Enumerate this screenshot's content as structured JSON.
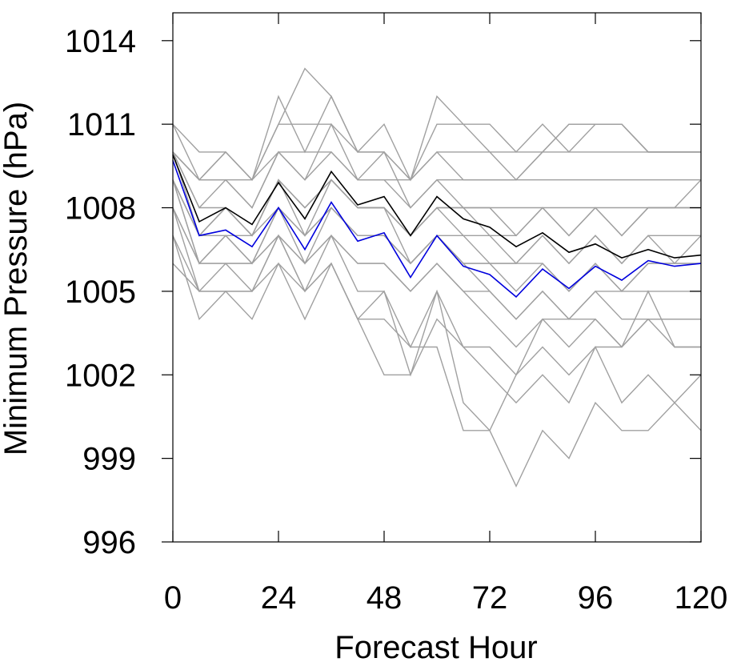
{
  "chart_data": {
    "type": "line",
    "title": "",
    "xlabel": "Forecast Hour",
    "ylabel": "Minimum Pressure (hPa)",
    "xlim": [
      0,
      120
    ],
    "ylim": [
      996,
      1015
    ],
    "xticks": [
      0,
      24,
      48,
      72,
      96,
      120
    ],
    "xtick_labels": [
      "0",
      "24",
      "48",
      "72",
      "96",
      "120"
    ],
    "yticks": [
      996,
      999,
      1002,
      1005,
      1008,
      1011,
      1014
    ],
    "ytick_labels": [
      "996",
      "999",
      "1002",
      "1005",
      "1008",
      "1011",
      "1014"
    ],
    "grid": false,
    "legend": "none",
    "x": [
      0,
      6,
      12,
      18,
      24,
      30,
      36,
      42,
      48,
      54,
      60,
      66,
      72,
      78,
      84,
      90,
      96,
      102,
      108,
      114,
      120
    ],
    "series": [
      {
        "color": "#000000",
        "values": [
          1009.9,
          1007.5,
          1008.0,
          1007.4,
          1008.9,
          1007.6,
          1009.3,
          1008.1,
          1008.4,
          1007.0,
          1008.4,
          1007.6,
          1007.3,
          1006.6,
          1007.1,
          1006.4,
          1006.7,
          1006.2,
          1006.5,
          1006.2,
          1006.3
        ]
      },
      {
        "color": "#0000dd",
        "values": [
          1009.7,
          1007.0,
          1007.2,
          1006.6,
          1008.0,
          1006.5,
          1008.2,
          1006.8,
          1007.1,
          1005.5,
          1007.0,
          1005.9,
          1005.6,
          1004.8,
          1005.8,
          1005.1,
          1005.9,
          1005.4,
          1006.1,
          1005.9,
          1006.0
        ]
      },
      {
        "color": "#a0a0a0",
        "values": [
          1010,
          1009,
          1009,
          1009,
          1010,
          1010,
          1010,
          1009,
          1009,
          1009,
          1010,
          1010,
          1010,
          1010,
          1010,
          1010,
          1010,
          1010,
          1010,
          1010,
          1010
        ]
      },
      {
        "color": "#a0a0a0",
        "values": [
          1011,
          1010,
          1010,
          1009,
          1011,
          1011,
          1011,
          1010,
          1010,
          1009,
          1011,
          1011,
          1011,
          1010,
          1011,
          1010,
          1011,
          1011,
          1010,
          1010,
          1010
        ]
      },
      {
        "color": "#a0a0a0",
        "values": [
          1010,
          1009,
          1009,
          1008,
          1010,
          1009,
          1010,
          1009,
          1009,
          1008,
          1009,
          1009,
          1009,
          1009,
          1009,
          1009,
          1009,
          1009,
          1009,
          1009,
          1009
        ]
      },
      {
        "color": "#a0a0a0",
        "values": [
          1009,
          1007,
          1008,
          1007,
          1009,
          1008,
          1009,
          1008,
          1008,
          1007,
          1008,
          1008,
          1008,
          1008,
          1008,
          1008,
          1008,
          1008,
          1008,
          1008,
          1008
        ]
      },
      {
        "color": "#a0a0a0",
        "values": [
          1010,
          1008,
          1009,
          1008,
          1010,
          1009,
          1011,
          1009,
          1010,
          1008,
          1009,
          1008,
          1008,
          1007,
          1008,
          1007,
          1008,
          1007,
          1008,
          1008,
          1009
        ]
      },
      {
        "color": "#a0a0a0",
        "values": [
          1009,
          1006,
          1007,
          1006,
          1008,
          1006,
          1008,
          1007,
          1007,
          1006,
          1007,
          1006,
          1006,
          1005,
          1006,
          1005,
          1006,
          1005,
          1006,
          1006,
          1007
        ]
      },
      {
        "color": "#a0a0a0",
        "values": [
          1008,
          1006,
          1006,
          1006,
          1007,
          1006,
          1007,
          1006,
          1006,
          1005,
          1006,
          1005,
          1005,
          1004,
          1005,
          1004,
          1005,
          1005,
          1005,
          1005,
          1005
        ]
      },
      {
        "color": "#a0a0a0",
        "values": [
          1009,
          1007,
          1007,
          1007,
          1008,
          1007,
          1008,
          1007,
          1007,
          1006,
          1007,
          1006,
          1006,
          1006,
          1006,
          1005,
          1006,
          1005,
          1006,
          1006,
          1006
        ]
      },
      {
        "color": "#a0a0a0",
        "values": [
          1010,
          1008,
          1008,
          1007,
          1009,
          1008,
          1009,
          1008,
          1008,
          1007,
          1008,
          1007,
          1007,
          1006,
          1007,
          1006,
          1007,
          1006,
          1007,
          1006,
          1006
        ]
      },
      {
        "color": "#a0a0a0",
        "values": [
          1011,
          1009,
          1010,
          1009,
          1012,
          1010,
          1012,
          1010,
          1011,
          1009,
          1012,
          1011,
          1010,
          1009,
          1010,
          1011,
          1011,
          1011,
          1010,
          1010,
          1010
        ]
      },
      {
        "color": "#a0a0a0",
        "values": [
          1010,
          1009,
          1010,
          1009,
          1011,
          1013,
          1012,
          1010,
          1010,
          1009,
          1010,
          1009,
          1009,
          1009,
          1010,
          1011,
          1011,
          1011,
          1010,
          1010,
          1010
        ]
      },
      {
        "color": "#a0a0a0",
        "values": [
          1009,
          1007,
          1008,
          1007,
          1009,
          1008,
          1009,
          1008,
          1008,
          1006,
          1007,
          1006,
          1005,
          1004,
          1005,
          1004,
          1005,
          1004,
          1004,
          1004,
          1004
        ]
      },
      {
        "color": "#a0a0a0",
        "values": [
          1008,
          1006,
          1006,
          1006,
          1007,
          1006,
          1007,
          1006,
          1006,
          1005,
          1006,
          1005,
          1004,
          1003,
          1004,
          1003,
          1004,
          1003,
          1004,
          1003,
          1003
        ]
      },
      {
        "color": "#a0a0a0",
        "values": [
          1008,
          1005,
          1005,
          1005,
          1007,
          1005,
          1006,
          1004,
          1005,
          1002,
          1005,
          1003,
          1003,
          1002,
          1004,
          1004,
          1004,
          1003,
          1004,
          1004,
          1004
        ]
      },
      {
        "color": "#a0a0a0",
        "values": [
          1007,
          1004,
          1005,
          1004,
          1006,
          1004,
          1006,
          1004,
          1002,
          1002,
          1004,
          1003,
          1002,
          1001,
          1002,
          1001,
          1003,
          1001,
          1002,
          1001,
          1000
        ]
      },
      {
        "color": "#a0a0a0",
        "values": [
          1007,
          1005,
          1006,
          1005,
          1007,
          1005,
          1007,
          1005,
          1005,
          1003,
          1005,
          1001,
          1000,
          998,
          1000,
          999,
          1001,
          1000,
          1000,
          1001,
          1002
        ]
      },
      {
        "color": "#a0a0a0",
        "values": [
          1006,
          1005,
          1005,
          1005,
          1006,
          1005,
          1006,
          1004,
          1004,
          1003,
          1003,
          1000,
          1000,
          1002,
          1003,
          1002,
          1003,
          1003,
          1005,
          1003,
          1003
        ]
      },
      {
        "color": "#a0a0a0",
        "values": [
          1010,
          1007,
          1008,
          1007,
          1009,
          1007,
          1009,
          1008,
          1008,
          1007,
          1008,
          1008,
          1007,
          1007,
          1008,
          1007,
          1008,
          1007,
          1008,
          1008,
          1008
        ]
      },
      {
        "color": "#a0a0a0",
        "values": [
          1009,
          1006,
          1007,
          1006,
          1008,
          1007,
          1008,
          1007,
          1007,
          1006,
          1007,
          1007,
          1006,
          1006,
          1007,
          1006,
          1007,
          1006,
          1007,
          1007,
          1007
        ]
      }
    ]
  }
}
